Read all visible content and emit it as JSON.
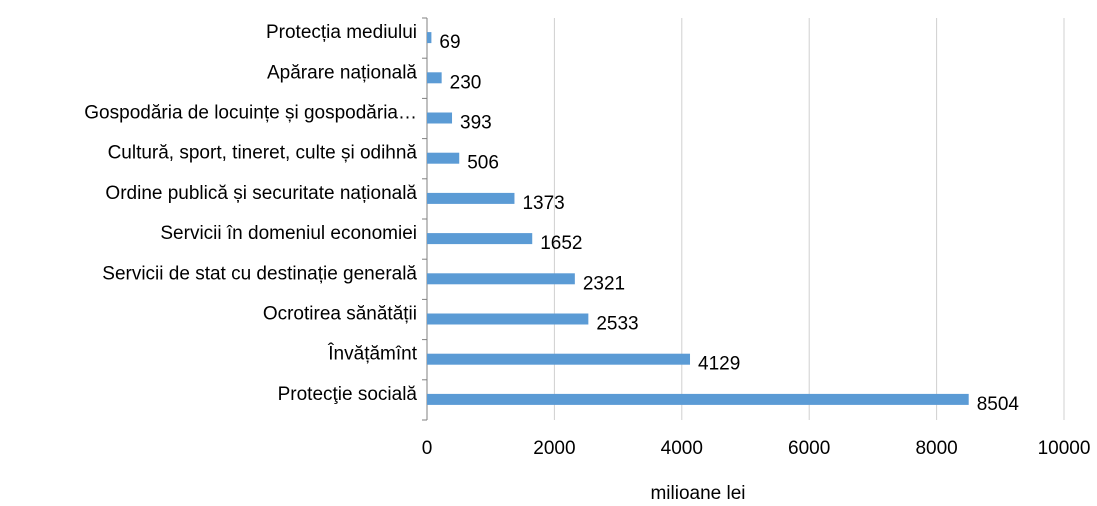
{
  "chart_data": {
    "type": "barh",
    "categories": [
      "Protecția mediului",
      "Apărare națională",
      "Gospodăria de locuințe și gospodăria…",
      "Cultură, sport, tineret, culte și odihnă",
      "Ordine publică și securitate națională",
      "Servicii în domeniul economiei",
      "Servicii de stat cu destinație generală",
      "Ocrotirea sănătății",
      "Învățămînt",
      "Protecţie socială"
    ],
    "values": [
      69,
      230,
      393,
      506,
      1373,
      1652,
      2321,
      2533,
      4129,
      8504
    ],
    "color": "#5b9bd5",
    "x_label": "milioane lei",
    "xlim": [
      0,
      10000
    ],
    "xticks": [
      0,
      2000,
      4000,
      6000,
      8000,
      10000
    ],
    "grid": true
  }
}
